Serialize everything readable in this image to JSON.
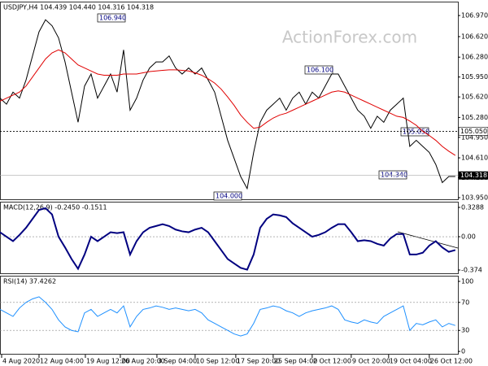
{
  "chart_data": [
    {
      "type": "line",
      "title": "USDJPY,H4 104.439 104.440 104.316 104.318",
      "watermark": "ActionForex.com",
      "xlim": [
        0,
        70.4
      ],
      "xticks": [
        {
          "value": 0.25,
          "label": "4 Aug 2020"
        },
        {
          "value": 6,
          "label": "12 Aug 04:00"
        },
        {
          "value": 13.125,
          "label": "19 Aug 12:00"
        },
        {
          "value": 18.5,
          "label": "26 Aug 20:00"
        },
        {
          "value": 24.125,
          "label": "3 Sep 04:00"
        },
        {
          "value": 30,
          "label": "10 Sep 12:00"
        },
        {
          "value": 36.25,
          "label": "17 Sep 20:00"
        },
        {
          "value": 42,
          "label": "25 Sep 04:00"
        },
        {
          "value": 48,
          "label": "2 Oct 12:00"
        },
        {
          "value": 54,
          "label": "9 Oct 20:00"
        },
        {
          "value": 59.75,
          "label": "19 Oct 04:00"
        },
        {
          "value": 66,
          "label": "26 Oct 12:00"
        }
      ],
      "ylim": [
        103.923,
        107.187
      ],
      "yticks": [
        {
          "value": 106.97,
          "label": "106.970"
        },
        {
          "value": 106.62,
          "label": "106.620"
        },
        {
          "value": 106.28,
          "label": "106.280"
        },
        {
          "value": 105.95,
          "label": "105.950"
        },
        {
          "value": 105.62,
          "label": "105.620"
        },
        {
          "value": 105.28,
          "label": "105.280"
        },
        {
          "value": 104.95,
          "label": "104.950"
        },
        {
          "value": 104.61,
          "label": "104.610"
        },
        {
          "value": 104.28,
          "label": "104.280"
        },
        {
          "value": 103.95,
          "label": "103.950"
        }
      ],
      "level": {
        "value": 105.05,
        "label": "105.050"
      },
      "last_price": 104.318,
      "annotations": [
        "106.940",
        "106.100",
        "105.050",
        "104.340",
        "104.000"
      ],
      "series": [
        {
          "color": "#000000",
          "values": [
            105.6,
            105.5,
            105.7,
            105.6,
            105.9,
            106.3,
            106.7,
            106.9,
            106.8,
            106.6,
            106.2,
            105.7,
            105.2,
            105.8,
            106.0,
            105.6,
            105.8,
            106.0,
            105.7,
            106.4,
            105.4,
            105.6,
            105.9,
            106.1,
            106.2,
            106.2,
            106.3,
            106.1,
            106.0,
            106.1,
            106.0,
            106.1,
            105.9,
            105.7,
            105.3,
            104.9,
            104.6,
            104.3,
            104.1,
            104.7,
            105.2,
            105.4,
            105.5,
            105.6,
            105.4,
            105.6,
            105.7,
            105.5,
            105.7,
            105.6,
            105.8,
            106.0,
            106.0,
            105.8,
            105.6,
            105.4,
            105.3,
            105.1,
            105.3,
            105.2,
            105.4,
            105.5,
            105.6,
            104.8,
            104.9,
            104.8,
            104.7,
            104.5,
            104.2,
            104.3,
            104.3
          ]
        },
        {
          "color": "#e00000",
          "values": [
            105.55,
            105.6,
            105.65,
            105.7,
            105.8,
            105.95,
            106.1,
            106.25,
            106.35,
            106.4,
            106.35,
            106.25,
            106.15,
            106.1,
            106.05,
            106.0,
            105.98,
            105.98,
            105.98,
            106.0,
            106.0,
            106.0,
            106.02,
            106.04,
            106.05,
            106.06,
            106.07,
            106.07,
            106.06,
            106.05,
            106.02,
            105.98,
            105.92,
            105.85,
            105.75,
            105.62,
            105.48,
            105.32,
            105.2,
            105.1,
            105.12,
            105.2,
            105.27,
            105.32,
            105.35,
            105.4,
            105.45,
            105.5,
            105.55,
            105.6,
            105.65,
            105.7,
            105.72,
            105.7,
            105.65,
            105.6,
            105.55,
            105.5,
            105.45,
            105.4,
            105.35,
            105.3,
            105.28,
            105.22,
            105.15,
            105.05,
            104.98,
            104.9,
            104.8,
            104.72,
            104.65
          ]
        }
      ]
    },
    {
      "type": "line",
      "title": "MACD(12,26,9) -0.2450 -0.1511",
      "xlim": [
        0,
        70.4
      ],
      "ylim": [
        -0.4105,
        0.3835
      ],
      "yticks": [
        0.3288,
        {
          "value": 0,
          "label": "0.00"
        },
        -0.374
      ],
      "series": [
        {
          "color": "#000080",
          "values": [
            0.05,
            0.0,
            -0.05,
            0.02,
            0.1,
            0.2,
            0.3,
            0.32,
            0.25,
            0.0,
            -0.12,
            -0.25,
            -0.36,
            -0.2,
            0.0,
            -0.05,
            0.0,
            0.05,
            0.04,
            0.05,
            -0.2,
            -0.05,
            0.05,
            0.1,
            0.12,
            0.14,
            0.12,
            0.08,
            0.06,
            0.05,
            0.08,
            0.1,
            0.05,
            -0.05,
            -0.15,
            -0.25,
            -0.3,
            -0.35,
            -0.37,
            -0.2,
            0.1,
            0.2,
            0.25,
            0.24,
            0.22,
            0.15,
            0.1,
            0.05,
            0.0,
            0.02,
            0.05,
            0.1,
            0.14,
            0.14,
            0.05,
            -0.05,
            -0.04,
            -0.05,
            -0.08,
            -0.1,
            -0.02,
            0.03,
            0.03,
            -0.2,
            -0.2,
            -0.18,
            -0.1,
            -0.05,
            -0.12,
            -0.17,
            -0.15
          ]
        }
      ]
    },
    {
      "type": "line",
      "title": "RSI(14) 37.4262",
      "xlim": [
        0,
        70.4
      ],
      "ylim": [
        -3.4,
        106.9
      ],
      "yticks": [
        100,
        70,
        30,
        0
      ],
      "series": [
        {
          "color": "#1e90ff",
          "values": [
            60,
            55,
            50,
            62,
            70,
            75,
            78,
            70,
            60,
            45,
            35,
            30,
            28,
            55,
            60,
            50,
            55,
            60,
            55,
            65,
            35,
            50,
            60,
            62,
            65,
            63,
            60,
            62,
            60,
            58,
            60,
            55,
            45,
            40,
            35,
            30,
            25,
            22,
            25,
            40,
            60,
            62,
            65,
            63,
            58,
            55,
            50,
            55,
            58,
            60,
            62,
            65,
            60,
            45,
            42,
            40,
            45,
            42,
            40,
            50,
            55,
            60,
            65,
            30,
            40,
            38,
            42,
            45,
            35,
            40,
            37
          ]
        }
      ]
    }
  ]
}
